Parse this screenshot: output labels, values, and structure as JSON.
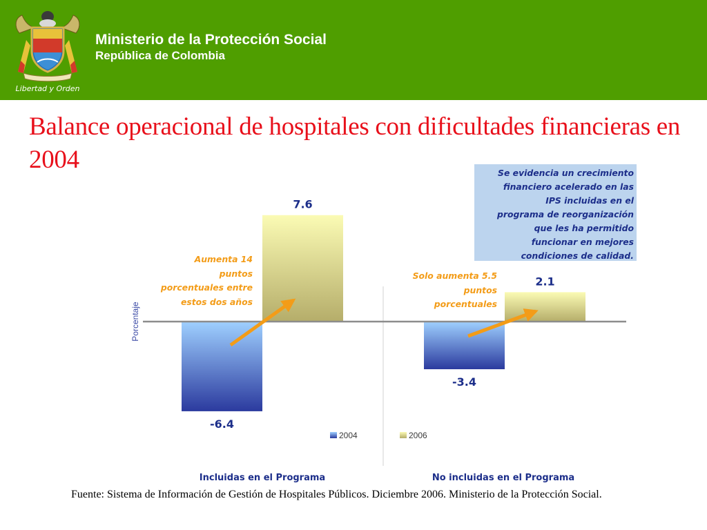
{
  "header": {
    "org_name": "Ministerio de la Protección Social",
    "country": "República de Colombia",
    "motto": "Libertad y Orden",
    "background_color": "#4f9e00",
    "emblem_icon": "coat-of-arms-icon"
  },
  "slide_title": "Balance operacional de hospitales con dificultades financieras en 2004",
  "note_box": {
    "lines": [
      "Se evidencia un crecimiento",
      "financiero acelerado en las",
      "IPS incluidas en el",
      "programa de reorganización",
      "que les ha permitido",
      "funcionar en mejores",
      "condiciones de calidad."
    ]
  },
  "annotations": {
    "group1": [
      "Aumenta 14",
      "puntos",
      "porcentuales entre",
      "estos dos años"
    ],
    "group2": [
      "Solo aumenta 5.5",
      "puntos",
      "porcentuales"
    ]
  },
  "chart_data": {
    "type": "bar",
    "title": "",
    "xlabel": "",
    "ylabel": "Porcentaje",
    "categories": [
      "Incluidas en el Programa",
      "No incluidas en el Programa"
    ],
    "series": [
      {
        "name": "2004",
        "values": [
          -6.4,
          -3.4
        ],
        "labels": [
          "-6.4",
          "-3.4"
        ],
        "color_top": "#9fd0ff",
        "color_bottom": "#2b3a9e"
      },
      {
        "name": "2006",
        "values": [
          7.6,
          2.1
        ],
        "labels": [
          "7.6",
          "2.1"
        ],
        "color_top": "#fbfbb4",
        "color_bottom": "#b5ad6a"
      }
    ],
    "legend_position": "bottom",
    "grid": false
  },
  "source": "Fuente: Sistema de Información de Gestión de Hospitales Públicos. Diciembre 2006. Ministerio de la Protección Social."
}
